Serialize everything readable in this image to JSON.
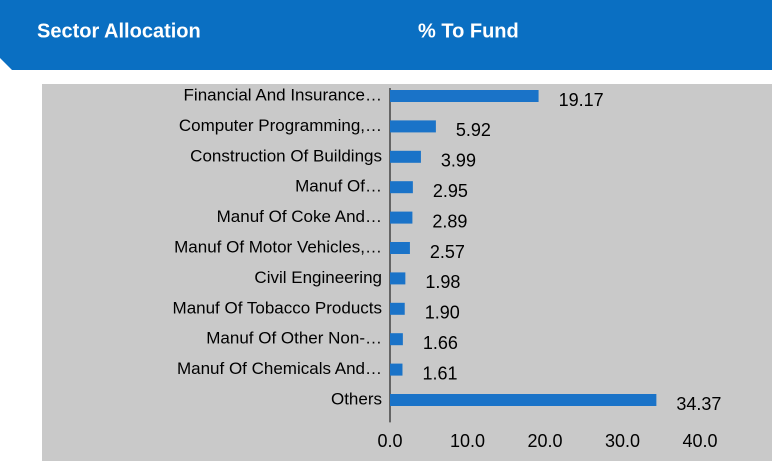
{
  "chart_data": {
    "type": "bar",
    "orientation": "horizontal",
    "title": "Sector Allocation",
    "value_header": "% To Fund",
    "categories": [
      "Financial And Insurance…",
      "Computer Programming,…",
      "Construction Of Buildings",
      "Manuf Of…",
      "Manuf Of Coke And…",
      "Manuf Of Motor Vehicles,…",
      "Civil Engineering",
      "Manuf Of Tobacco Products",
      "Manuf Of Other Non-…",
      "Manuf Of Chemicals And…",
      "Others"
    ],
    "values": [
      19.17,
      5.92,
      3.99,
      2.95,
      2.89,
      2.57,
      1.98,
      1.9,
      1.66,
      1.61,
      34.37
    ],
    "value_labels": [
      "19.17",
      "5.92",
      "3.99",
      "2.95",
      "2.89",
      "2.57",
      "1.98",
      "1.90",
      "1.66",
      "1.61",
      "34.37"
    ],
    "color": "#1a73c8",
    "xlim": [
      0,
      40
    ],
    "xticks": [
      {
        "value": 0,
        "label": "0.0"
      },
      {
        "value": 10,
        "label": "10.0"
      },
      {
        "value": 20,
        "label": "20.0"
      },
      {
        "value": 30,
        "label": "30.0"
      },
      {
        "value": 40,
        "label": "40.0"
      }
    ]
  }
}
